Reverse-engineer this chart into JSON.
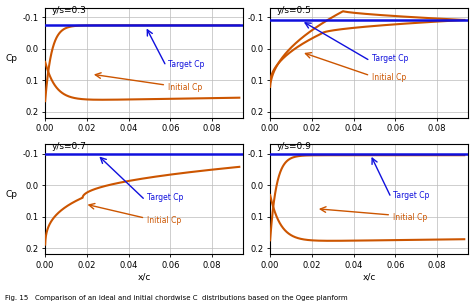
{
  "panels": [
    {
      "title": "y/s=0.3",
      "target_cp": -0.075
    },
    {
      "title": "y/s=0.5",
      "target_cp": -0.092
    },
    {
      "title": "y/s=0.7",
      "target_cp": -0.1
    },
    {
      "title": "y/s=0.9",
      "target_cp": -0.1
    }
  ],
  "xlim": [
    0.0,
    0.095
  ],
  "ylim": [
    0.22,
    -0.13
  ],
  "xticks": [
    0.0,
    0.02,
    0.04,
    0.06,
    0.08
  ],
  "yticks": [
    -0.1,
    0.0,
    0.1,
    0.2
  ],
  "xlabel": "x/c",
  "ylabel": "Cp",
  "target_color": "#1010DD",
  "initial_color": "#CC5500",
  "legend_target": "Target Cp",
  "legend_initial": "Initial Cp",
  "fig_caption": "Fig. 15   Comparison of an ideal and initial chordwise C  distributions based on the Ogee planform",
  "bg_color": "#ffffff",
  "grid_color": "#bbbbbb"
}
